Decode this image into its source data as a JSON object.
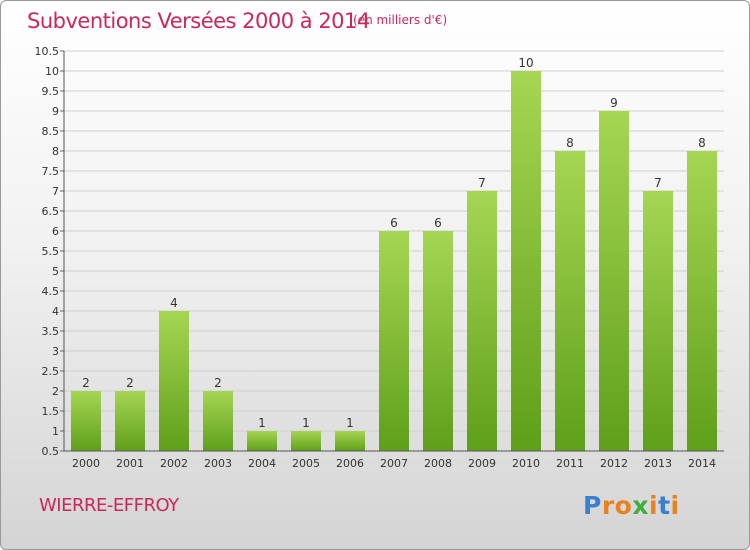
{
  "header": {
    "title": "Subventions Versées 2000 à 2014",
    "subtitle": "(en milliers d'€)"
  },
  "footer": {
    "commune": "WIERRE-EFFROY",
    "logo_text": "Proxiti",
    "logo_letters": [
      {
        "ch": "P",
        "color": "#3a7fd0"
      },
      {
        "ch": "r",
        "color": "#e8821e"
      },
      {
        "ch": "o",
        "color": "#e8821e"
      },
      {
        "ch": "x",
        "color": "#3fae3a"
      },
      {
        "ch": "i",
        "color": "#e8821e"
      },
      {
        "ch": "t",
        "color": "#3a7fd0"
      },
      {
        "ch": "i",
        "color": "#e8821e"
      }
    ]
  },
  "colors": {
    "title": "#c8285a",
    "bar_top": "#a6d653",
    "bar_bottom": "#5f9f1a",
    "grid": "#cfcfcf",
    "axis_text": "#333333"
  },
  "chart_data": {
    "type": "bar",
    "title": "Subventions Versées 2000 à 2014",
    "subtitle": "(en milliers d'€)",
    "categories": [
      "2000",
      "2001",
      "2002",
      "2003",
      "2004",
      "2005",
      "2006",
      "2007",
      "2008",
      "2009",
      "2010",
      "2011",
      "2012",
      "2013",
      "2014"
    ],
    "values": [
      2,
      2,
      4,
      2,
      1,
      1,
      1,
      6,
      6,
      7,
      10,
      8,
      9,
      7,
      8
    ],
    "value_labels": [
      "2",
      "2",
      "4",
      "2",
      "1",
      "1",
      "1",
      "6",
      "6",
      "7",
      "10",
      "8",
      "9",
      "7",
      "8"
    ],
    "ylim": [
      0.5,
      10.5
    ],
    "yticks": [
      "0.5",
      "1",
      "1.5",
      "2",
      "2.5",
      "3",
      "3.5",
      "4",
      "4.5",
      "5",
      "5.5",
      "6",
      "6.5",
      "7",
      "7.5",
      "8",
      "8.5",
      "9",
      "9.5",
      "10",
      "10.5"
    ],
    "grid": true,
    "legend": "none"
  }
}
